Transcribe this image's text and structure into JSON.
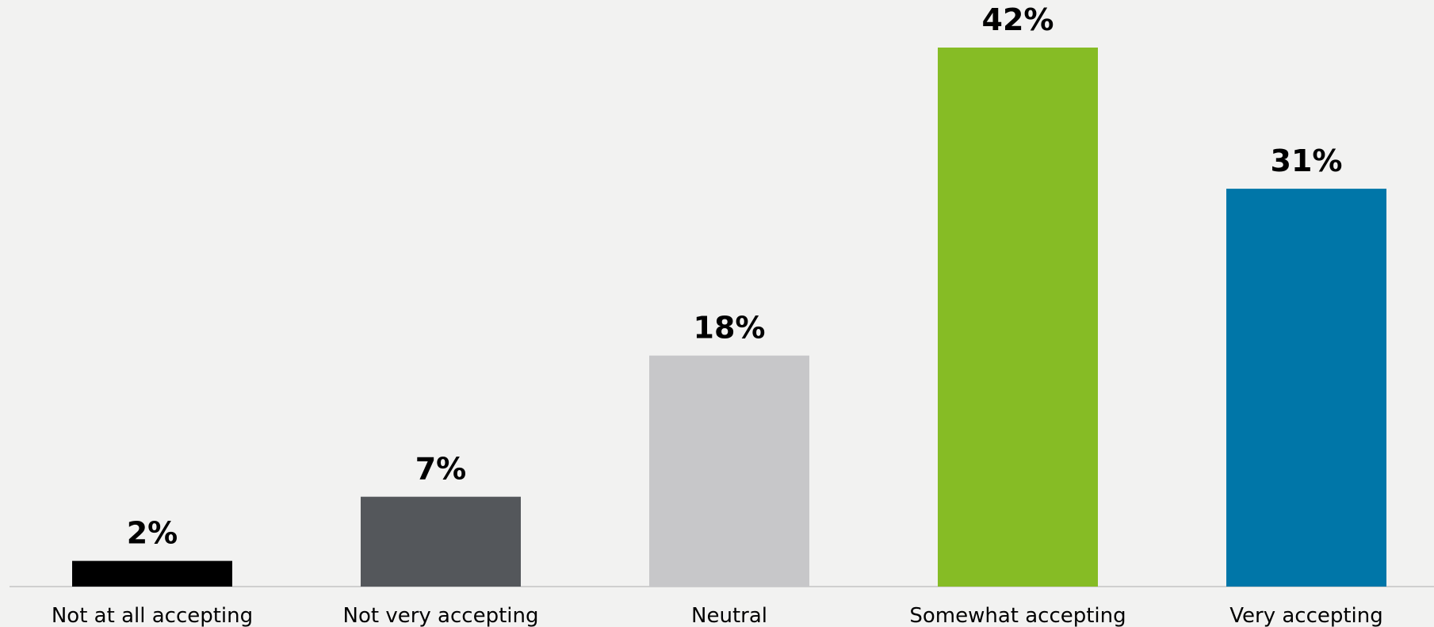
{
  "chart_data": {
    "type": "bar",
    "title": "",
    "xlabel": "",
    "ylabel": "",
    "categories": [
      "Not at all accepting",
      "Not very accepting",
      "Neutral",
      "Somewhat accepting",
      "Very accepting"
    ],
    "values": [
      2,
      7,
      18,
      42,
      31
    ],
    "value_labels": [
      "2%",
      "7%",
      "18%",
      "42%",
      "31%"
    ],
    "colors": [
      "#000000",
      "#54575b",
      "#c7c7c9",
      "#86bc25",
      "#0076a8"
    ],
    "ylim": [
      0,
      42
    ],
    "grid": false,
    "legend": "none",
    "axis_line_color": "#cfcfcf"
  }
}
